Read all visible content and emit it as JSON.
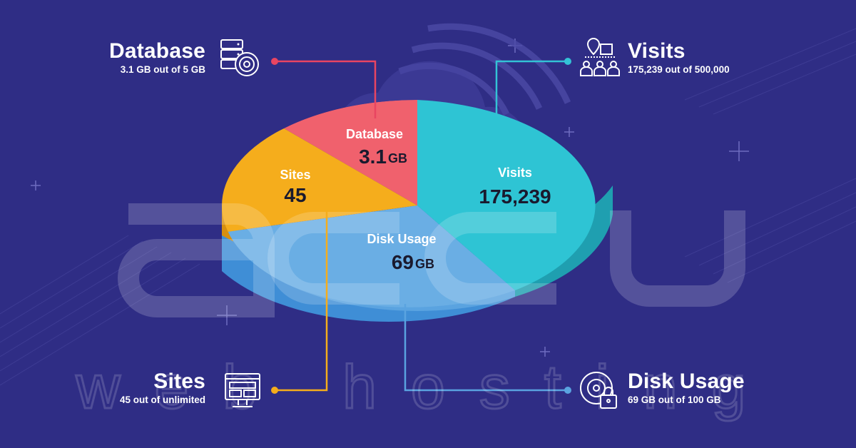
{
  "brand": {
    "watermark_top": "accu",
    "watermark_bottom": "web hosting"
  },
  "colors": {
    "background": "#2f2d85",
    "database": "#f0616d",
    "sites": "#f5ad1c",
    "disk": "#5aa3e0",
    "visits": "#2ec4d4",
    "connector_database": "#e94561",
    "connector_visits": "#33c3d6",
    "connector_sites": "#f5ad1c",
    "connector_disk": "#5aa3e0"
  },
  "callouts": {
    "database": {
      "title": "Database",
      "subtitle": "3.1 GB out of 5 GB",
      "icon": "database-disc-icon"
    },
    "visits": {
      "title": "Visits",
      "subtitle": "175,239 out of 500,000",
      "icon": "visitors-location-icon"
    },
    "sites": {
      "title": "Sites",
      "subtitle": "45 out of unlimited",
      "icon": "website-monitor-icon"
    },
    "disk": {
      "title": "Disk Usage",
      "subtitle": "69 GB out of 100 GB",
      "icon": "disk-lock-icon"
    }
  },
  "pie": {
    "database": {
      "label": "Database",
      "value": "3.1",
      "unit": "GB"
    },
    "sites": {
      "label": "Sites",
      "value": "45",
      "unit": ""
    },
    "disk": {
      "label": "Disk Usage",
      "value": "69",
      "unit": "GB"
    },
    "visits": {
      "label": "Visits",
      "value": "175,239",
      "unit": ""
    }
  }
}
